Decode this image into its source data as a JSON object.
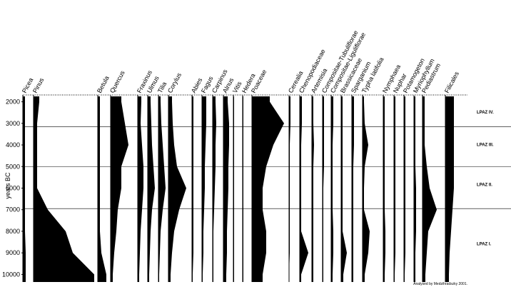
{
  "chart_data": {
    "type": "pollen",
    "ylabel": "years BC",
    "ylim": [
      1750,
      10350
    ],
    "yticks": [
      2000,
      3000,
      4000,
      5000,
      6000,
      7000,
      8000,
      9000,
      10000
    ],
    "years": [
      2000,
      3000,
      4000,
      5000,
      6000,
      7000,
      8000,
      9000,
      10000
    ],
    "color": "#000000",
    "series": [
      {
        "name": "Picea",
        "values": [
          3,
          3,
          3,
          3,
          3,
          3,
          3,
          4,
          4
        ]
      },
      {
        "name": "Pinus",
        "values": [
          8,
          5,
          5,
          5,
          5,
          20,
          45,
          55,
          85
        ]
      },
      {
        "name": "Betula",
        "values": [
          3,
          3,
          3,
          3,
          3,
          3,
          3,
          5,
          12
        ]
      },
      {
        "name": "Quercus",
        "values": [
          15,
          20,
          25,
          15,
          15,
          10,
          8,
          5,
          3
        ]
      },
      {
        "name": "Fraxinus",
        "values": [
          5,
          4,
          6,
          8,
          8,
          6,
          4,
          3,
          2
        ]
      },
      {
        "name": "Ulmus",
        "values": [
          4,
          5,
          6,
          8,
          10,
          6,
          4,
          3,
          2
        ]
      },
      {
        "name": "Tilia",
        "values": [
          3,
          4,
          6,
          8,
          10,
          6,
          3,
          2,
          1
        ]
      },
      {
        "name": "Corylus",
        "values": [
          5,
          6,
          8,
          12,
          25,
          15,
          8,
          5,
          3
        ]
      },
      {
        "name": "Abies",
        "values": [
          2,
          2,
          2,
          2,
          2,
          2,
          2,
          2,
          1
        ]
      },
      {
        "name": "Fagus",
        "values": [
          6,
          6,
          5,
          4,
          4,
          3,
          2,
          2,
          1
        ]
      },
      {
        "name": "Carpinus",
        "values": [
          4,
          5,
          4,
          4,
          3,
          2,
          1,
          1,
          1
        ]
      },
      {
        "name": "Alnus",
        "values": [
          6,
          8,
          8,
          7,
          7,
          6,
          5,
          5,
          4
        ]
      },
      {
        "name": "Vitis",
        "values": [
          1,
          1,
          1,
          1,
          1,
          1,
          1,
          1,
          1
        ]
      },
      {
        "name": "Hedera",
        "values": [
          1,
          1,
          1,
          1,
          1,
          1,
          1,
          1,
          1
        ]
      },
      {
        "name": "Poaceae",
        "values": [
          25,
          45,
          30,
          20,
          15,
          15,
          20,
          20,
          15
        ]
      },
      {
        "name": "Cerealia",
        "values": [
          2,
          2,
          1,
          1,
          1,
          1,
          1,
          1,
          0
        ]
      },
      {
        "name": "Chenopodiaceae",
        "values": [
          3,
          3,
          2,
          2,
          2,
          2,
          2,
          12,
          2
        ]
      },
      {
        "name": "Artemisia",
        "values": [
          2,
          2,
          3,
          2,
          2,
          2,
          2,
          2,
          2
        ]
      },
      {
        "name": "Compositae-Tubuliflorae",
        "values": [
          2,
          2,
          2,
          2,
          1,
          1,
          1,
          1,
          1
        ]
      },
      {
        "name": "Compositae-Liguliflorae",
        "values": [
          3,
          3,
          2,
          2,
          2,
          2,
          3,
          3,
          2
        ]
      },
      {
        "name": "Brassicaceae",
        "values": [
          2,
          2,
          2,
          2,
          2,
          2,
          2,
          8,
          3
        ]
      },
      {
        "name": "Sparganium",
        "values": [
          3,
          3,
          3,
          2,
          2,
          2,
          2,
          2,
          2
        ]
      },
      {
        "name": "Typha latifolia",
        "values": [
          2,
          3,
          8,
          3,
          2,
          2,
          10,
          8,
          3
        ]
      },
      {
        "name": "Nymphaea",
        "values": [
          2,
          2,
          2,
          2,
          2,
          2,
          3,
          3,
          2
        ]
      },
      {
        "name": "Nuphar",
        "values": [
          2,
          2,
          2,
          2,
          2,
          2,
          2,
          2,
          1
        ]
      },
      {
        "name": "Potamogeton",
        "values": [
          2,
          2,
          2,
          2,
          2,
          2,
          2,
          2,
          1
        ]
      },
      {
        "name": "Myriophyllum",
        "values": [
          2,
          2,
          2,
          2,
          3,
          3,
          3,
          2,
          2
        ]
      },
      {
        "name": "Pediastrum",
        "values": [
          3,
          3,
          3,
          6,
          10,
          20,
          8,
          6,
          4
        ]
      },
      {
        "name": "Filicales",
        "values": [
          12,
          12,
          12,
          12,
          12,
          10,
          8,
          6,
          5
        ]
      }
    ],
    "zone_boundaries": [
      3150,
      5000,
      6950
    ],
    "zones": [
      {
        "label": "LPAZ IV.",
        "center": 2550
      },
      {
        "label": "LPAZ III.",
        "center": 4050
      },
      {
        "label": "LPAZ II.",
        "center": 5900
      },
      {
        "label": "LPAZ I.",
        "center": 8650
      }
    ],
    "credit": "Analysed by Medzihradszky 2001."
  }
}
